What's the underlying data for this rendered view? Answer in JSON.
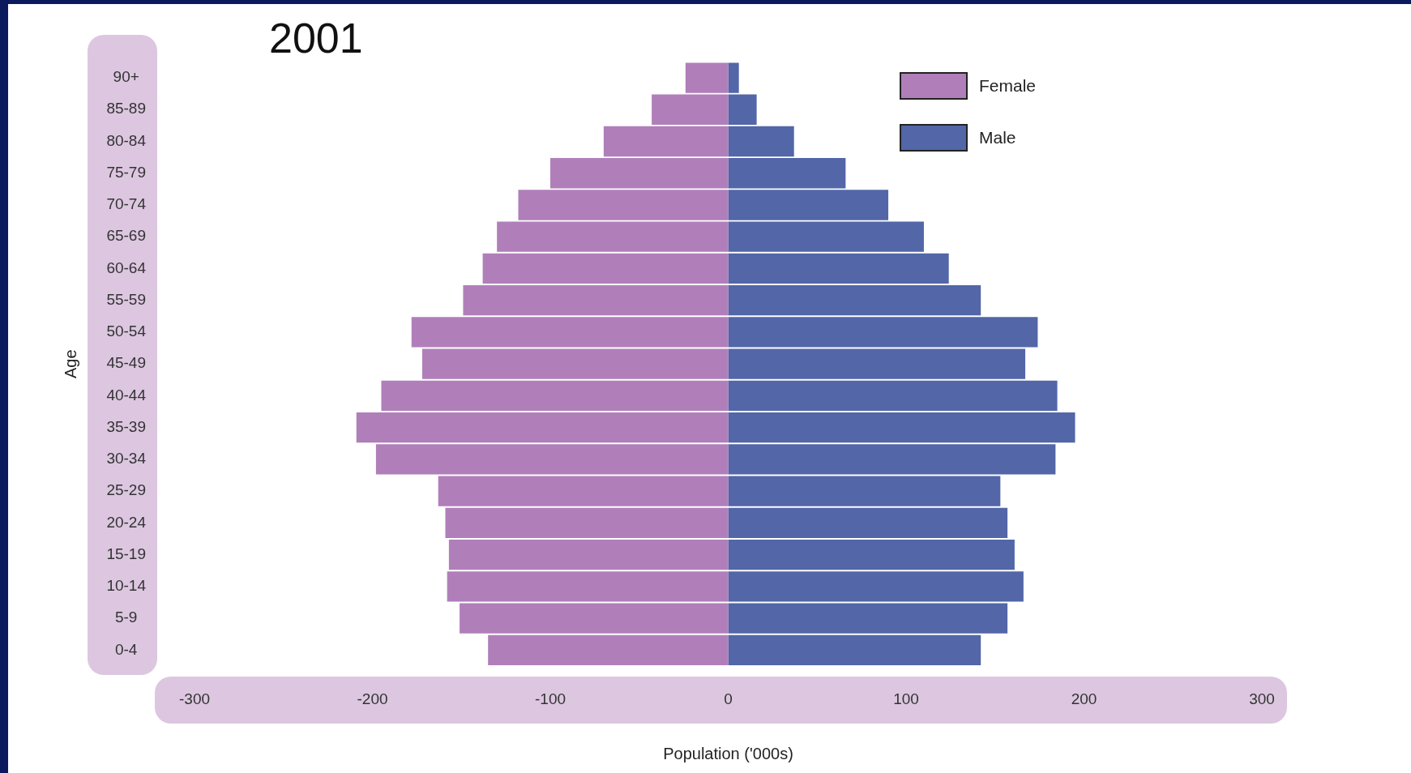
{
  "chart_data": {
    "type": "bar",
    "orientation": "horizontal",
    "stacked": true,
    "title": "2001",
    "xlabel": "Population ('000s)",
    "ylabel": "Age",
    "categories": [
      "90+",
      "85-89",
      "80-84",
      "75-79",
      "70-74",
      "65-69",
      "60-64",
      "55-59",
      "50-54",
      "45-49",
      "40-44",
      "35-39",
      "30-34",
      "25-29",
      "20-24",
      "15-19",
      "10-14",
      "5-9",
      "0-4"
    ],
    "series": [
      {
        "name": "Female",
        "color": "#b07fba",
        "values": [
          -24,
          -43,
          -70,
          -100,
          -118,
          -130,
          -138,
          -149,
          -178,
          -172,
          -195,
          -209,
          -198,
          -163,
          -159,
          -157,
          -158,
          -151,
          -135
        ]
      },
      {
        "name": "Male",
        "color": "#5266a8",
        "values": [
          6,
          16,
          37,
          66,
          90,
          110,
          124,
          142,
          174,
          167,
          185,
          195,
          184,
          153,
          157,
          161,
          166,
          157,
          142
        ]
      }
    ],
    "xlim": [
      -300,
      300
    ],
    "xticks": [
      -300,
      -200,
      -100,
      0,
      100,
      200,
      300
    ],
    "grid": false,
    "legend": "top right"
  }
}
